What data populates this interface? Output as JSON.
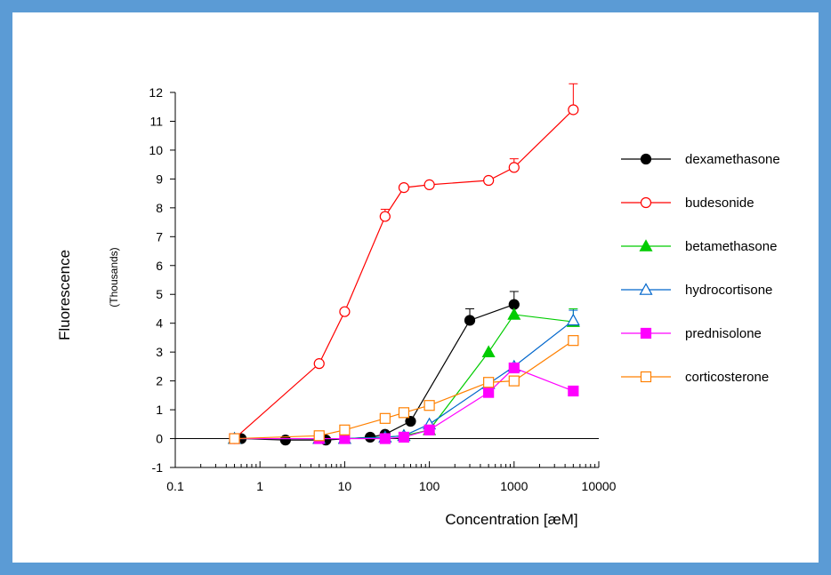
{
  "chart_data": {
    "type": "line",
    "ylabel": "Fluorescence",
    "ylabel_unit": "(Thousands)",
    "xlabel": "Concentration [æM]",
    "x_scale": "log",
    "xlim": [
      0.1,
      10000
    ],
    "ylim": [
      -1,
      12
    ],
    "x_tick_labels": [
      {
        "value": 0.1,
        "label": "0.1"
      },
      {
        "value": 1,
        "label": "1"
      },
      {
        "value": 10,
        "label": "10"
      },
      {
        "value": 100,
        "label": "100"
      },
      {
        "value": 1000,
        "label": "1000"
      },
      {
        "value": 10000,
        "label": "10000"
      }
    ],
    "y_tick_labels": [
      {
        "value": -1,
        "label": "-1"
      },
      {
        "value": 0,
        "label": "0"
      },
      {
        "value": 1,
        "label": "1"
      },
      {
        "value": 2,
        "label": "2"
      },
      {
        "value": 3,
        "label": "3"
      },
      {
        "value": 4,
        "label": "4"
      },
      {
        "value": 5,
        "label": "5"
      },
      {
        "value": 6,
        "label": "6"
      },
      {
        "value": 7,
        "label": "7"
      },
      {
        "value": 8,
        "label": "8"
      },
      {
        "value": 9,
        "label": "9"
      },
      {
        "value": 10,
        "label": "10"
      },
      {
        "value": 11,
        "label": "11"
      },
      {
        "value": 12,
        "label": "12"
      }
    ],
    "legend_position": "right",
    "series": [
      {
        "name": "dexamethasone",
        "color": "#000000",
        "marker": "circle-filled",
        "points": [
          [
            0.6,
            0.0
          ],
          [
            2,
            -0.05
          ],
          [
            6,
            -0.05
          ],
          [
            20,
            0.05
          ],
          [
            30,
            0.15
          ],
          [
            60,
            0.6
          ],
          [
            300,
            4.1
          ],
          [
            1000,
            4.65
          ]
        ],
        "error_bars": [
          [
            300,
            0.4
          ],
          [
            1000,
            0.45
          ]
        ]
      },
      {
        "name": "budesonide",
        "color": "#ff0000",
        "marker": "circle-open",
        "points": [
          [
            0.5,
            0.0
          ],
          [
            5,
            2.6
          ],
          [
            10,
            4.4
          ],
          [
            30,
            7.7
          ],
          [
            50,
            8.7
          ],
          [
            100,
            8.8
          ],
          [
            500,
            8.95
          ],
          [
            1000,
            9.4
          ],
          [
            5000,
            11.4
          ]
        ],
        "error_bars": [
          [
            30,
            0.25
          ],
          [
            1000,
            0.3
          ],
          [
            5000,
            0.9
          ]
        ]
      },
      {
        "name": "betamethasone",
        "color": "#00cc00",
        "marker": "triangle-filled",
        "points": [
          [
            0.5,
            0.0
          ],
          [
            5,
            0.0
          ],
          [
            10,
            0.0
          ],
          [
            30,
            0.05
          ],
          [
            50,
            0.1
          ],
          [
            100,
            0.3
          ],
          [
            500,
            3.0
          ],
          [
            1000,
            4.3
          ],
          [
            5000,
            4.05
          ]
        ],
        "error_bars": [
          [
            5000,
            0.45
          ]
        ]
      },
      {
        "name": "hydrocortisone",
        "color": "#0066cc",
        "marker": "triangle-open",
        "points": [
          [
            0.5,
            0.0
          ],
          [
            5,
            0.0
          ],
          [
            10,
            0.0
          ],
          [
            30,
            0.05
          ],
          [
            50,
            0.1
          ],
          [
            100,
            0.5
          ],
          [
            500,
            1.9
          ],
          [
            1000,
            2.5
          ],
          [
            5000,
            4.1
          ]
        ],
        "error_bars": [
          [
            5000,
            0.35
          ]
        ]
      },
      {
        "name": "prednisolone",
        "color": "#ff00ff",
        "marker": "square-filled",
        "points": [
          [
            0.5,
            0.0
          ],
          [
            5,
            0.0
          ],
          [
            10,
            0.0
          ],
          [
            30,
            0.0
          ],
          [
            50,
            0.05
          ],
          [
            100,
            0.3
          ],
          [
            500,
            1.6
          ],
          [
            1000,
            2.45
          ],
          [
            5000,
            1.65
          ]
        ],
        "error_bars": []
      },
      {
        "name": "corticosterone",
        "color": "#ff8000",
        "marker": "square-open",
        "points": [
          [
            0.5,
            0.0
          ],
          [
            5,
            0.1
          ],
          [
            10,
            0.3
          ],
          [
            30,
            0.7
          ],
          [
            50,
            0.9
          ],
          [
            100,
            1.15
          ],
          [
            500,
            1.95
          ],
          [
            1000,
            2.0
          ],
          [
            5000,
            3.4
          ]
        ],
        "error_bars": []
      }
    ]
  }
}
